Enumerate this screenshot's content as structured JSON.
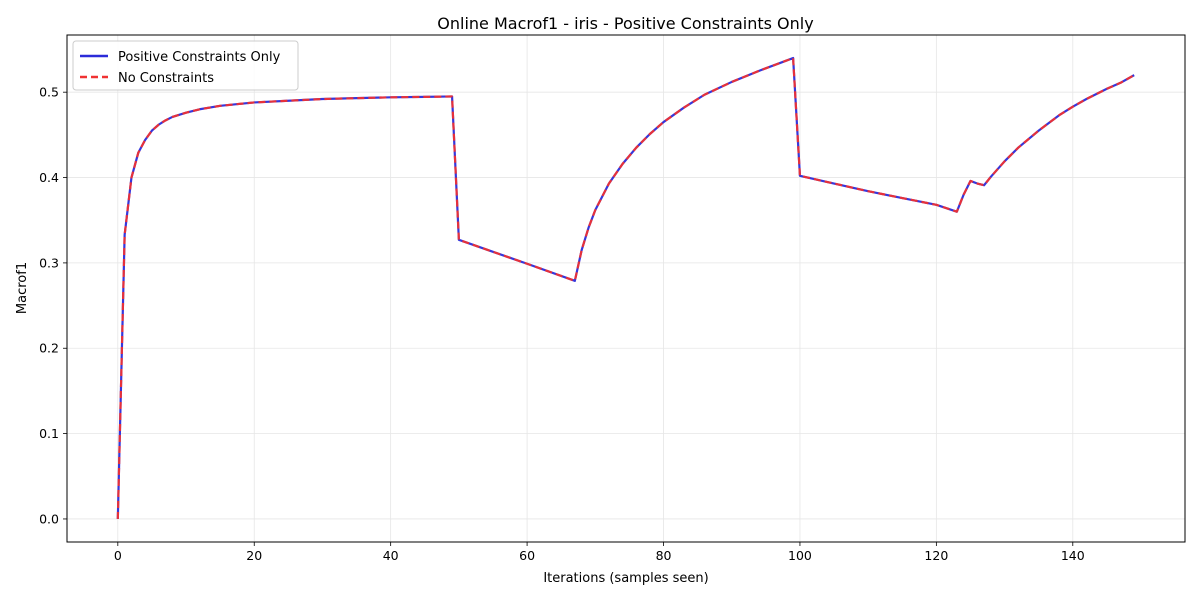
{
  "chart_data": {
    "type": "line",
    "title": "Online Macrof1 - iris - Positive Constraints Only",
    "xlabel": "Iterations (samples seen)",
    "ylabel": "Macrof1",
    "xlim": [
      -7.45,
      156.45
    ],
    "ylim": [
      -0.027,
      0.567
    ],
    "xticks": [
      0,
      20,
      40,
      60,
      80,
      100,
      120,
      140
    ],
    "yticks": [
      0.0,
      0.1,
      0.2,
      0.3,
      0.4,
      0.5
    ],
    "xtick_labels": [
      "0",
      "20",
      "40",
      "60",
      "80",
      "100",
      "120",
      "140"
    ],
    "ytick_labels": [
      "0.0",
      "0.1",
      "0.2",
      "0.3",
      "0.4",
      "0.5"
    ],
    "grid": true,
    "legend": {
      "position": "top-left"
    },
    "series": [
      {
        "name": "Positive Constraints Only",
        "color": "#2b2bd9",
        "style": "solid",
        "x": [
          0,
          1,
          2,
          3,
          4,
          5,
          6,
          7,
          8,
          10,
          12,
          15,
          20,
          25,
          30,
          35,
          40,
          45,
          49,
          50,
          55,
          60,
          67,
          68,
          69,
          70,
          72,
          74,
          76,
          78,
          80,
          83,
          86,
          90,
          94,
          97,
          99,
          100,
          105,
          110,
          115,
          120,
          123,
          124,
          125,
          126,
          127,
          128,
          130,
          132,
          135,
          138,
          140,
          142,
          145,
          147,
          149
        ],
        "y": [
          0.0,
          0.333,
          0.4,
          0.429,
          0.444,
          0.455,
          0.462,
          0.467,
          0.471,
          0.476,
          0.48,
          0.484,
          0.488,
          0.49,
          0.492,
          0.493,
          0.494,
          0.4945,
          0.495,
          0.327,
          0.313,
          0.299,
          0.279,
          0.315,
          0.341,
          0.362,
          0.393,
          0.416,
          0.435,
          0.451,
          0.465,
          0.482,
          0.497,
          0.512,
          0.525,
          0.534,
          0.54,
          0.402,
          0.393,
          0.384,
          0.376,
          0.368,
          0.36,
          0.38,
          0.396,
          0.393,
          0.391,
          0.401,
          0.419,
          0.435,
          0.455,
          0.473,
          0.483,
          0.492,
          0.504,
          0.511,
          0.52
        ]
      },
      {
        "name": "No Constraints",
        "color": "#f03232",
        "style": "dashed",
        "x": [
          0,
          1,
          2,
          3,
          4,
          5,
          6,
          7,
          8,
          10,
          12,
          15,
          20,
          25,
          30,
          35,
          40,
          45,
          49,
          50,
          55,
          60,
          67,
          68,
          69,
          70,
          72,
          74,
          76,
          78,
          80,
          83,
          86,
          90,
          94,
          97,
          99,
          100,
          105,
          110,
          115,
          120,
          123,
          124,
          125,
          126,
          127,
          128,
          130,
          132,
          135,
          138,
          140,
          142,
          145,
          147,
          149
        ],
        "y": [
          0.0,
          0.333,
          0.4,
          0.429,
          0.444,
          0.455,
          0.462,
          0.467,
          0.471,
          0.476,
          0.48,
          0.484,
          0.488,
          0.49,
          0.492,
          0.493,
          0.494,
          0.4945,
          0.495,
          0.327,
          0.313,
          0.299,
          0.279,
          0.315,
          0.341,
          0.362,
          0.393,
          0.416,
          0.435,
          0.451,
          0.465,
          0.482,
          0.497,
          0.512,
          0.525,
          0.534,
          0.54,
          0.402,
          0.393,
          0.384,
          0.376,
          0.368,
          0.36,
          0.38,
          0.396,
          0.393,
          0.391,
          0.401,
          0.419,
          0.435,
          0.455,
          0.473,
          0.483,
          0.492,
          0.504,
          0.511,
          0.52
        ]
      }
    ]
  }
}
